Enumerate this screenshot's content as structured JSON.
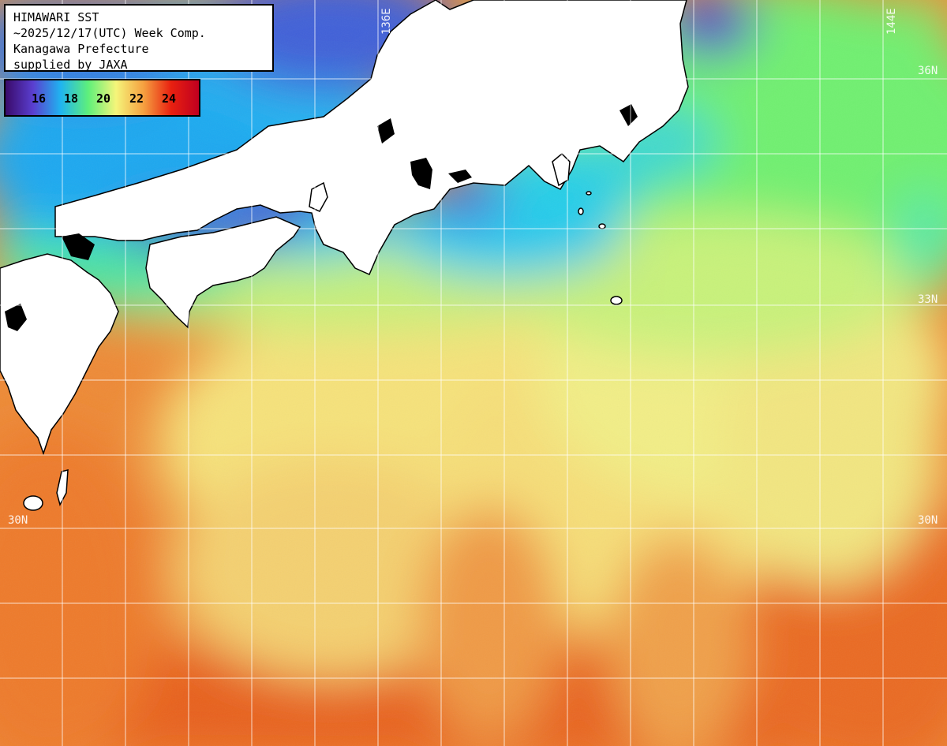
{
  "title": {
    "line1": "HIMAWARI SST",
    "line2": "~2025/12/17(UTC) Week Comp.",
    "line3": "Kanagawa Prefecture",
    "line4": "supplied by JAXA"
  },
  "legend": {
    "ticks": [
      "16",
      "18",
      "20",
      "22",
      "24"
    ],
    "colors": [
      "#3a0a6a",
      "#5a3fd0",
      "#1fb4f0",
      "#5ff07a",
      "#f5f57a",
      "#f5a040",
      "#e82010",
      "#c00020"
    ]
  },
  "grid": {
    "lon_labels": [
      "136E",
      "144E"
    ],
    "lat_labels": [
      "36N",
      "33N",
      "30N",
      "30N"
    ]
  },
  "palette": {
    "land": "#ffffff",
    "cold_sea": "#4a44c8",
    "cool_sea": "#1ec8f0",
    "mid_sea": "#7af07a",
    "warm_sea": "#f5ee80",
    "hot_sea": "#f09040",
    "hotter_sea": "#ee6a1e",
    "grid_line": "#ffffff"
  }
}
